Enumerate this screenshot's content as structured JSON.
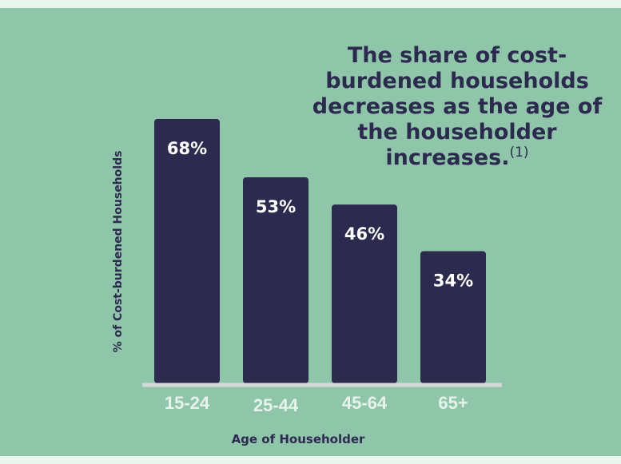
{
  "chart_data": {
    "type": "bar",
    "categories": [
      "15-24",
      "25-44",
      "45-64",
      "65+"
    ],
    "values": [
      68,
      53,
      46,
      34
    ],
    "data_labels": [
      "68%",
      "53%",
      "46%",
      "34%"
    ],
    "xlabel": "Age of Householder",
    "ylabel": "% of Cost-burdened Households",
    "ylim": [
      0,
      68
    ],
    "grid": false,
    "annotation": {
      "text": "The share of cost-burdened households decreases as the age of the householder increases.",
      "footnote_marker": "(1)"
    }
  },
  "colors": {
    "background": "#8fc6a9",
    "frame": "#eaf5ee",
    "bar": "#2c2a4e",
    "bar_label": "#ffffff",
    "tick_label": "#e8f2ec",
    "axis_line": "#d3d9d6",
    "text_dark": "#2c2a4e"
  }
}
